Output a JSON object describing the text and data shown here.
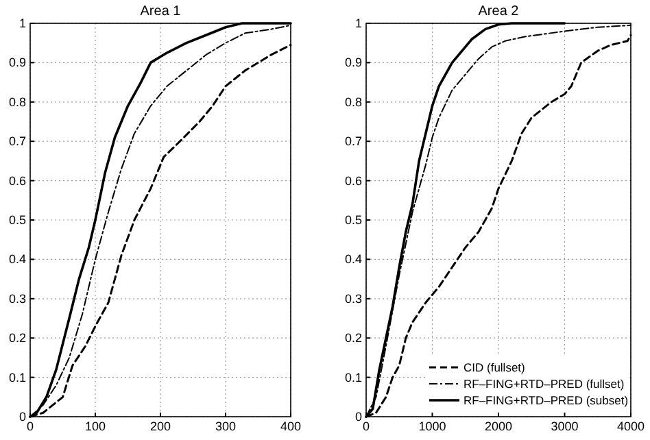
{
  "chart_data": [
    {
      "type": "line",
      "title": "Area 1",
      "xlim": [
        0,
        400
      ],
      "ylim": [
        0,
        1
      ],
      "xticks": [
        0,
        100,
        200,
        300,
        400
      ],
      "yticks": [
        0,
        0.1,
        0.2,
        0.3,
        0.4,
        0.5,
        0.6,
        0.7,
        0.8,
        0.9,
        1
      ],
      "grid": true,
      "legend": false,
      "series": [
        {
          "color": "#000000",
          "line_style": "dashed",
          "x": [
            0,
            20,
            50,
            65,
            85,
            100,
            120,
            140,
            160,
            185,
            205,
            230,
            260,
            280,
            300,
            330,
            370,
            400
          ],
          "values": [
            0,
            0.01,
            0.05,
            0.13,
            0.18,
            0.23,
            0.29,
            0.41,
            0.5,
            0.58,
            0.66,
            0.7,
            0.75,
            0.79,
            0.84,
            0.88,
            0.92,
            0.945
          ]
        },
        {
          "color": "#000000",
          "line_style": "dashdot",
          "x": [
            0,
            20,
            40,
            60,
            80,
            100,
            120,
            140,
            160,
            185,
            210,
            240,
            270,
            300,
            330,
            370,
            400
          ],
          "values": [
            0,
            0.03,
            0.08,
            0.15,
            0.26,
            0.4,
            0.52,
            0.63,
            0.72,
            0.79,
            0.84,
            0.88,
            0.92,
            0.95,
            0.975,
            0.985,
            0.995
          ]
        },
        {
          "color": "#000000",
          "line_style": "solid",
          "x": [
            0,
            10,
            25,
            40,
            60,
            75,
            90,
            100,
            115,
            130,
            150,
            170,
            185,
            210,
            240,
            270,
            300,
            325,
            400
          ],
          "values": [
            0,
            0.01,
            0.05,
            0.12,
            0.25,
            0.35,
            0.43,
            0.5,
            0.62,
            0.71,
            0.79,
            0.85,
            0.9,
            0.925,
            0.95,
            0.97,
            0.99,
            1,
            1
          ]
        }
      ]
    },
    {
      "type": "line",
      "title": "Area 2",
      "xlim": [
        0,
        4000
      ],
      "ylim": [
        0,
        1
      ],
      "xticks": [
        0,
        1000,
        2000,
        3000,
        4000
      ],
      "yticks": [
        0,
        0.1,
        0.2,
        0.3,
        0.4,
        0.5,
        0.6,
        0.7,
        0.8,
        0.9,
        1
      ],
      "grid": true,
      "legend": "bottom right",
      "series": [
        {
          "name": "CID (fullset)",
          "color": "#000000",
          "line_style": "dashed",
          "x": [
            0,
            150,
            300,
            400,
            500,
            600,
            700,
            900,
            1100,
            1300,
            1500,
            1700,
            1900,
            2000,
            2200,
            2350,
            2500,
            2800,
            3000,
            3100,
            3250,
            3500,
            3700,
            3950,
            4000
          ],
          "values": [
            0,
            0.01,
            0.05,
            0.1,
            0.13,
            0.2,
            0.24,
            0.29,
            0.33,
            0.38,
            0.43,
            0.47,
            0.53,
            0.58,
            0.65,
            0.72,
            0.76,
            0.8,
            0.82,
            0.84,
            0.9,
            0.93,
            0.945,
            0.955,
            0.97
          ]
        },
        {
          "name": "RF–FING+RTD–PRED (fullset)",
          "color": "#000000",
          "line_style": "dashdot",
          "x": [
            0,
            150,
            300,
            500,
            700,
            900,
            1000,
            1100,
            1300,
            1500,
            1700,
            1900,
            2100,
            2400,
            3000,
            3500,
            4000
          ],
          "values": [
            0,
            0.05,
            0.18,
            0.36,
            0.52,
            0.64,
            0.71,
            0.76,
            0.83,
            0.87,
            0.91,
            0.94,
            0.955,
            0.966,
            0.98,
            0.99,
            0.995
          ]
        },
        {
          "name": "RF–FING+RTD–PRED (subset)",
          "color": "#000000",
          "line_style": "solid",
          "x": [
            0,
            100,
            150,
            200,
            300,
            400,
            500,
            600,
            700,
            800,
            900,
            1000,
            1100,
            1200,
            1300,
            1400,
            1500,
            1600,
            1800,
            2000,
            2200,
            3000
          ],
          "values": [
            0,
            0.02,
            0.07,
            0.12,
            0.2,
            0.28,
            0.38,
            0.47,
            0.54,
            0.65,
            0.72,
            0.79,
            0.84,
            0.87,
            0.9,
            0.92,
            0.94,
            0.96,
            0.985,
            0.997,
            1,
            1
          ]
        }
      ]
    }
  ]
}
